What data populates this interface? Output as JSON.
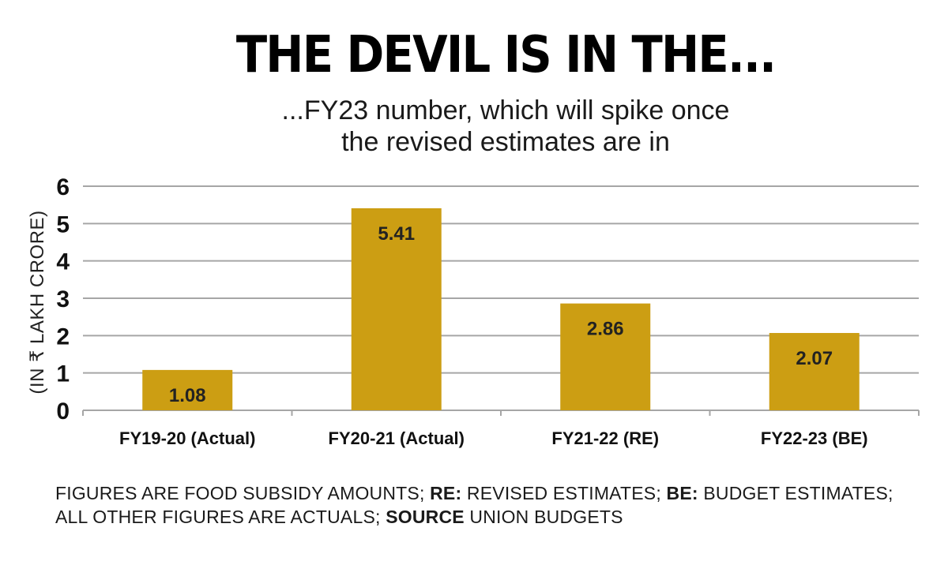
{
  "title": "THE DEVIL IS IN THE...",
  "subtitle_line1": "...FY23 number, which will spike once",
  "subtitle_line2": "the revised estimates are in",
  "chart_data": {
    "type": "bar",
    "categories": [
      "FY19-20 (Actual)",
      "FY20-21 (Actual)",
      "FY21-22 (RE)",
      "FY22-23 (BE)"
    ],
    "values": [
      1.08,
      5.41,
      2.86,
      2.07
    ],
    "value_labels": [
      "1.08",
      "5.41",
      "2.86",
      "2.07"
    ],
    "ylabel": "(IN ₹ LAKH CRORE)",
    "ylim": [
      0,
      6
    ],
    "yticks": [
      0,
      1,
      2,
      3,
      4,
      5,
      6
    ],
    "grid": true,
    "bar_color": "#CC9E13",
    "grid_color": "#A6A6A6"
  },
  "footnote": {
    "part1": "FIGURES ARE FOOD SUBSIDY AMOUNTS; ",
    "re_key": "RE:",
    "part2": " REVISED ESTIMATES; ",
    "be_key": "BE:",
    "part3": " BUDGET ESTIMATES; ALL OTHER FIGURES ARE ACTUALS; ",
    "source_key": "SOURCE",
    "part4": " UNION BUDGETS"
  }
}
